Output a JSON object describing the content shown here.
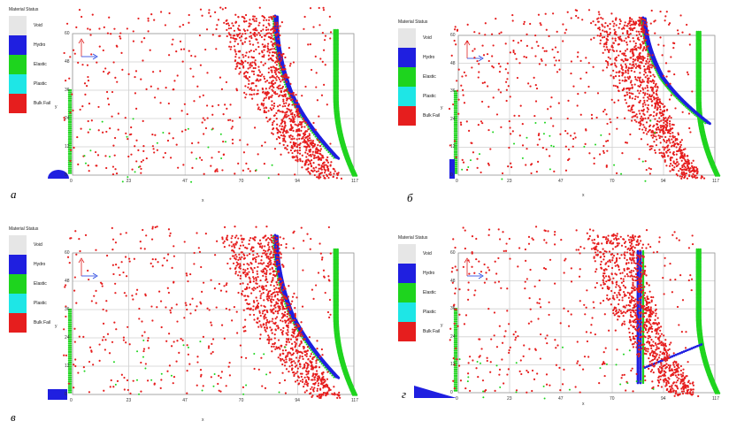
{
  "legend": {
    "title": "Material Status",
    "items": [
      {
        "label": "Void",
        "color": "#e6e6e6"
      },
      {
        "label": "Hydro",
        "color": "#1f1fe0"
      },
      {
        "label": "Elastic",
        "color": "#1ed41e"
      },
      {
        "label": "Plastic",
        "color": "#1ee6e6"
      },
      {
        "label": "Bulk Fail",
        "color": "#e61e1e"
      }
    ]
  },
  "x_ticks": [
    "0",
    "23",
    "47",
    "70",
    "94",
    "117"
  ],
  "y_ticks": [
    "0",
    "12",
    "24",
    "36",
    "48",
    "60"
  ],
  "axis_x_label": "x",
  "axis_y_label": "y",
  "panels": [
    {
      "label": "а"
    },
    {
      "label": "б"
    },
    {
      "label": "в"
    },
    {
      "label": "г"
    }
  ]
}
